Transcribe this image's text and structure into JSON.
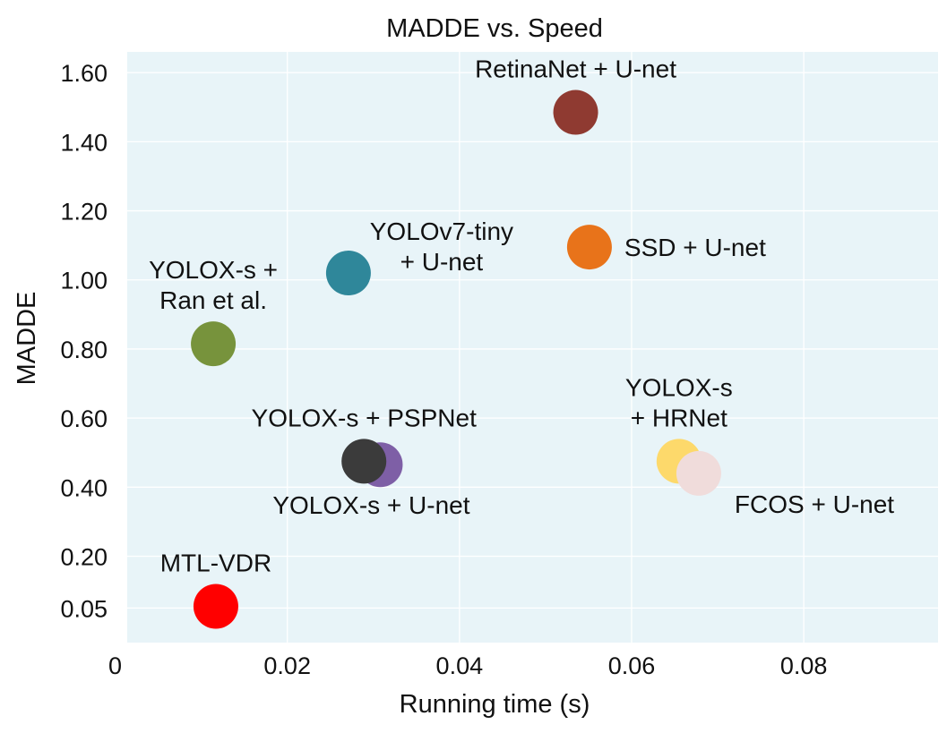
{
  "chart_data": {
    "type": "scatter",
    "title": "MADDE vs.  Speed",
    "xlabel": "Running time (s)",
    "ylabel": "MADDE",
    "xlim": [
      0.0014,
      0.0956
    ],
    "ylim": [
      -0.05,
      1.66
    ],
    "grid": true,
    "background": "#e8f4f8",
    "x_ticks": [
      {
        "value": 0.0,
        "label": "0"
      },
      {
        "value": 0.02,
        "label": "0.02"
      },
      {
        "value": 0.04,
        "label": "0.04"
      },
      {
        "value": 0.06,
        "label": "0.06"
      },
      {
        "value": 0.08,
        "label": "0.08"
      }
    ],
    "y_ticks": [
      {
        "value": 0.05,
        "label": "0.05"
      },
      {
        "value": 0.2,
        "label": "0.20"
      },
      {
        "value": 0.4,
        "label": "0.40"
      },
      {
        "value": 0.6,
        "label": "0.60"
      },
      {
        "value": 0.8,
        "label": "0.80"
      },
      {
        "value": 1.0,
        "label": "1.00"
      },
      {
        "value": 1.2,
        "label": "1.20"
      },
      {
        "value": 1.4,
        "label": "1.40"
      },
      {
        "value": 1.6,
        "label": "1.60"
      }
    ],
    "points": [
      {
        "label": [
          "RetinaNet +  U-net"
        ],
        "x": 0.0535,
        "y": 1.485,
        "color": "#8f3a31",
        "label_pos": "above"
      },
      {
        "label": [
          "SSD +  U-net"
        ],
        "x": 0.0551,
        "y": 1.095,
        "color": "#e8731a",
        "label_pos": "right"
      },
      {
        "label": [
          "YOLOv7-tiny",
          "+  U-net"
        ],
        "x": 0.0271,
        "y": 1.02,
        "color": "#2f879a",
        "label_pos": "above-right"
      },
      {
        "label": [
          "YOLOX-s +",
          "Ran et al."
        ],
        "x": 0.0114,
        "y": 0.815,
        "color": "#77933c",
        "label_pos": "above"
      },
      {
        "label": [
          "YOLOX-s +  U-net"
        ],
        "x": 0.0308,
        "y": 0.465,
        "color": "#7e5fa6",
        "label_pos": "below"
      },
      {
        "label": [
          "YOLOX-s + PSPNet"
        ],
        "x": 0.0289,
        "y": 0.475,
        "color": "#3b3b3b",
        "label_pos": "above"
      },
      {
        "label": [
          "YOLOX-s",
          "+  HRNet"
        ],
        "x": 0.0655,
        "y": 0.475,
        "color": "#fdd96b",
        "label_pos": "above"
      },
      {
        "label": [
          "FCOS +  U-net"
        ],
        "x": 0.0678,
        "y": 0.44,
        "color": "#f0dcdb",
        "label_pos": "below-right"
      },
      {
        "label": [
          "MTL-VDR"
        ],
        "x": 0.0117,
        "y": 0.055,
        "color": "#ff0000",
        "label_pos": "above"
      }
    ]
  }
}
